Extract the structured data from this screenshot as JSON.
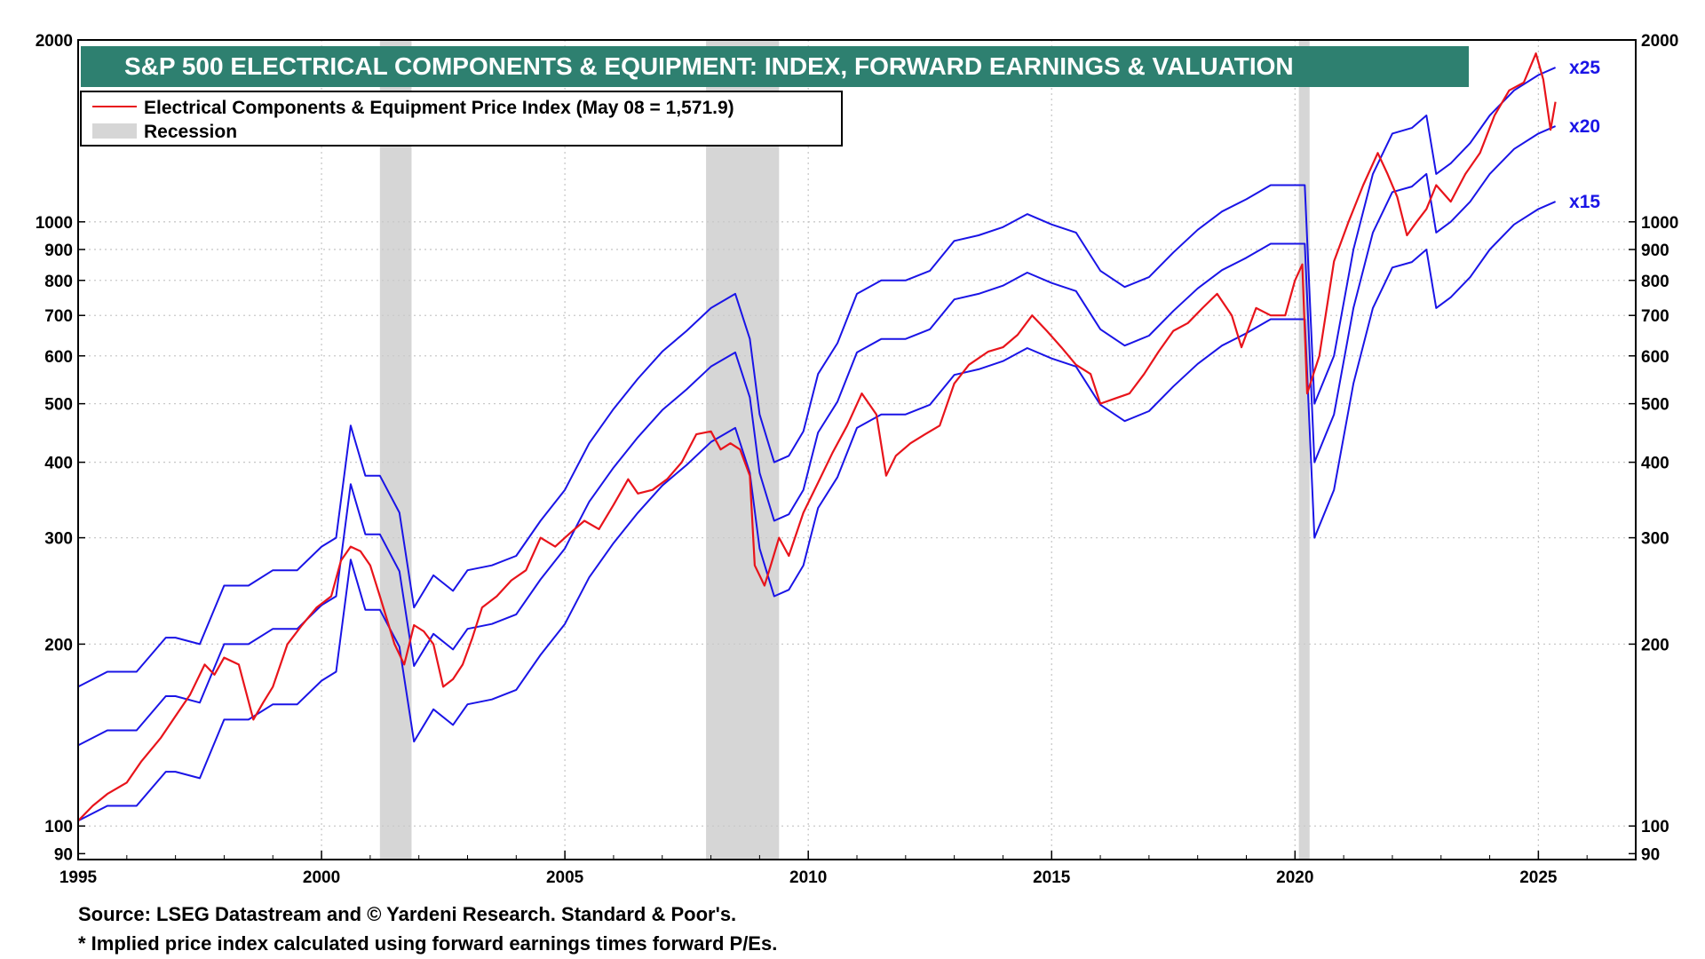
{
  "chart_data": {
    "type": "line",
    "title": "S&P 500 ELECTRICAL COMPONENTS & EQUIPMENT: INDEX, FORWARD EARNINGS & VALUATION",
    "y_scale": "log",
    "ylim": [
      88,
      2000
    ],
    "xlim": [
      1995.0,
      2027.0
    ],
    "y_ticks": [
      100,
      200,
      300,
      400,
      500,
      600,
      700,
      800,
      900,
      1000,
      2000
    ],
    "y_tick_labels_left": [
      "90",
      "100",
      "200",
      "300",
      "400",
      "500",
      "600",
      "700",
      "800",
      "900",
      "1000",
      "2000"
    ],
    "y_tick_values_left": [
      90,
      100,
      200,
      300,
      400,
      500,
      600,
      700,
      800,
      900,
      1000,
      2000
    ],
    "x_ticks": [
      1995,
      2000,
      2005,
      2010,
      2015,
      2020,
      2025
    ],
    "x_tick_labels": [
      "1995",
      "2000",
      "2005",
      "2010",
      "2015",
      "2020",
      "2025"
    ],
    "grid": true,
    "legend_position": "top-left",
    "legend": [
      {
        "label": "Electrical Components & Equipment Price Index (May 08 = 1,571.9)",
        "kind": "line",
        "color": "#e8141b"
      },
      {
        "label": "Recession",
        "kind": "area",
        "color": "#d6d6d6"
      }
    ],
    "recessions": [
      [
        2001.2,
        2001.85
      ],
      [
        2007.9,
        2009.4
      ],
      [
        2020.08,
        2020.3
      ]
    ],
    "series": [
      {
        "name": "Electrical Components & Equipment Price Index (May 08 = 1,571.9)",
        "color": "#e8141b",
        "x": [
          1995.0,
          1995.3,
          1995.6,
          1996.0,
          1996.3,
          1996.7,
          1997.0,
          1997.3,
          1997.6,
          1997.8,
          1998.0,
          1998.3,
          1998.6,
          1998.8,
          1999.0,
          1999.3,
          1999.6,
          1999.9,
          2000.2,
          2000.4,
          2000.6,
          2000.8,
          2001.0,
          2001.2,
          2001.5,
          2001.7,
          2001.9,
          2002.1,
          2002.3,
          2002.5,
          2002.7,
          2002.9,
          2003.1,
          2003.3,
          2003.6,
          2003.9,
          2004.2,
          2004.5,
          2004.8,
          2005.1,
          2005.4,
          2005.7,
          2006.0,
          2006.3,
          2006.5,
          2006.8,
          2007.1,
          2007.4,
          2007.7,
          2008.0,
          2008.2,
          2008.4,
          2008.6,
          2008.8,
          2008.9,
          2009.1,
          2009.2,
          2009.4,
          2009.6,
          2009.9,
          2010.2,
          2010.5,
          2010.8,
          2011.1,
          2011.4,
          2011.6,
          2011.8,
          2012.1,
          2012.4,
          2012.7,
          2013.0,
          2013.3,
          2013.7,
          2014.0,
          2014.3,
          2014.6,
          2014.9,
          2015.2,
          2015.5,
          2015.8,
          2016.0,
          2016.3,
          2016.6,
          2016.9,
          2017.2,
          2017.5,
          2017.8,
          2018.1,
          2018.4,
          2018.7,
          2018.9,
          2019.2,
          2019.5,
          2019.8,
          2020.0,
          2020.15,
          2020.25,
          2020.5,
          2020.8,
          2021.1,
          2021.4,
          2021.7,
          2021.9,
          2022.1,
          2022.3,
          2022.5,
          2022.7,
          2022.9,
          2023.2,
          2023.5,
          2023.8,
          2024.1,
          2024.4,
          2024.7,
          2024.95,
          2025.1,
          2025.25,
          2025.35
        ],
        "y": [
          102,
          108,
          113,
          118,
          128,
          140,
          152,
          165,
          185,
          178,
          190,
          185,
          150,
          160,
          170,
          200,
          215,
          230,
          240,
          275,
          290,
          285,
          270,
          240,
          200,
          185,
          215,
          210,
          200,
          170,
          175,
          185,
          205,
          230,
          240,
          255,
          265,
          300,
          290,
          305,
          320,
          310,
          340,
          375,
          355,
          360,
          375,
          400,
          445,
          450,
          420,
          430,
          420,
          380,
          270,
          250,
          265,
          300,
          280,
          330,
          370,
          415,
          460,
          520,
          480,
          380,
          410,
          430,
          445,
          460,
          540,
          580,
          610,
          620,
          650,
          700,
          660,
          620,
          580,
          560,
          500,
          510,
          520,
          560,
          610,
          660,
          680,
          720,
          760,
          700,
          620,
          720,
          700,
          700,
          800,
          850,
          520,
          600,
          860,
          1000,
          1150,
          1300,
          1200,
          1100,
          950,
          1000,
          1050,
          1150,
          1080,
          1200,
          1300,
          1500,
          1650,
          1700,
          1900,
          1720,
          1420,
          1580
        ]
      },
      {
        "name": "x25",
        "color": "#1a14e6",
        "x": [
          1995.0,
          1995.6,
          1996.2,
          1996.8,
          1997.0,
          1997.5,
          1998.0,
          1998.5,
          1999.0,
          1999.5,
          2000.0,
          2000.3,
          2000.6,
          2000.9,
          2001.2,
          2001.6,
          2001.9,
          2002.3,
          2002.7,
          2003.0,
          2003.5,
          2004.0,
          2004.5,
          2005.0,
          2005.5,
          2006.0,
          2006.5,
          2007.0,
          2007.5,
          2008.0,
          2008.5,
          2008.8,
          2009.0,
          2009.3,
          2009.6,
          2009.9,
          2010.2,
          2010.6,
          2011.0,
          2011.5,
          2012.0,
          2012.5,
          2013.0,
          2013.5,
          2014.0,
          2014.5,
          2015.0,
          2015.5,
          2016.0,
          2016.5,
          2017.0,
          2017.5,
          2018.0,
          2018.5,
          2019.0,
          2019.5,
          2020.0,
          2020.2,
          2020.4,
          2020.8,
          2021.2,
          2021.6,
          2022.0,
          2022.4,
          2022.7,
          2022.9,
          2023.2,
          2023.6,
          2024.0,
          2024.5,
          2025.0,
          2025.35
        ],
        "y": [
          170,
          180,
          180,
          205,
          205,
          200,
          250,
          250,
          265,
          265,
          290,
          300,
          460,
          380,
          380,
          330,
          230,
          260,
          245,
          265,
          270,
          280,
          320,
          360,
          430,
          490,
          550,
          610,
          660,
          720,
          760,
          640,
          480,
          400,
          410,
          450,
          560,
          630,
          760,
          800,
          800,
          830,
          930,
          950,
          980,
          1030,
          990,
          960,
          830,
          780,
          810,
          890,
          970,
          1040,
          1090,
          1150,
          1150,
          1150,
          500,
          600,
          900,
          1200,
          1400,
          1430,
          1500,
          1200,
          1250,
          1350,
          1500,
          1650,
          1750,
          1800
        ]
      },
      {
        "name": "x20",
        "color": "#1a14e6",
        "x": [
          1995.0,
          1995.6,
          1996.2,
          1996.8,
          1997.0,
          1997.5,
          1998.0,
          1998.5,
          1999.0,
          1999.5,
          2000.0,
          2000.3,
          2000.6,
          2000.9,
          2001.2,
          2001.6,
          2001.9,
          2002.3,
          2002.7,
          2003.0,
          2003.5,
          2004.0,
          2004.5,
          2005.0,
          2005.5,
          2006.0,
          2006.5,
          2007.0,
          2007.5,
          2008.0,
          2008.5,
          2008.8,
          2009.0,
          2009.3,
          2009.6,
          2009.9,
          2010.2,
          2010.6,
          2011.0,
          2011.5,
          2012.0,
          2012.5,
          2013.0,
          2013.5,
          2014.0,
          2014.5,
          2015.0,
          2015.5,
          2016.0,
          2016.5,
          2017.0,
          2017.5,
          2018.0,
          2018.5,
          2019.0,
          2019.5,
          2020.0,
          2020.2,
          2020.4,
          2020.8,
          2021.2,
          2021.6,
          2022.0,
          2022.4,
          2022.7,
          2022.9,
          2023.2,
          2023.6,
          2024.0,
          2024.5,
          2025.0,
          2025.35
        ],
        "y": [
          136,
          144,
          144,
          164,
          164,
          160,
          200,
          200,
          212,
          212,
          232,
          240,
          368,
          304,
          304,
          264,
          184,
          208,
          196,
          212,
          216,
          224,
          256,
          288,
          344,
          392,
          440,
          488,
          528,
          576,
          608,
          512,
          384,
          320,
          328,
          360,
          448,
          504,
          608,
          640,
          640,
          664,
          744,
          760,
          784,
          824,
          792,
          768,
          664,
          624,
          648,
          712,
          776,
          832,
          872,
          920,
          920,
          920,
          400,
          480,
          720,
          960,
          1120,
          1144,
          1200,
          960,
          1000,
          1080,
          1200,
          1320,
          1400,
          1440
        ]
      },
      {
        "name": "x15",
        "color": "#1a14e6",
        "x": [
          1995.0,
          1995.6,
          1996.2,
          1996.8,
          1997.0,
          1997.5,
          1998.0,
          1998.5,
          1999.0,
          1999.5,
          2000.0,
          2000.3,
          2000.6,
          2000.9,
          2001.2,
          2001.6,
          2001.9,
          2002.3,
          2002.7,
          2003.0,
          2003.5,
          2004.0,
          2004.5,
          2005.0,
          2005.5,
          2006.0,
          2006.5,
          2007.0,
          2007.5,
          2008.0,
          2008.5,
          2008.8,
          2009.0,
          2009.3,
          2009.6,
          2009.9,
          2010.2,
          2010.6,
          2011.0,
          2011.5,
          2012.0,
          2012.5,
          2013.0,
          2013.5,
          2014.0,
          2014.5,
          2015.0,
          2015.5,
          2016.0,
          2016.5,
          2017.0,
          2017.5,
          2018.0,
          2018.5,
          2019.0,
          2019.5,
          2020.0,
          2020.2,
          2020.4,
          2020.8,
          2021.2,
          2021.6,
          2022.0,
          2022.4,
          2022.7,
          2022.9,
          2023.2,
          2023.6,
          2024.0,
          2024.5,
          2025.0,
          2025.35
        ],
        "y": [
          102,
          108,
          108,
          123,
          123,
          120,
          150,
          150,
          159,
          159,
          174,
          180,
          276,
          228,
          228,
          198,
          138,
          156,
          147,
          159,
          162,
          168,
          192,
          216,
          258,
          294,
          330,
          366,
          396,
          432,
          456,
          384,
          288,
          240,
          246,
          270,
          336,
          378,
          456,
          480,
          480,
          498,
          558,
          570,
          588,
          618,
          594,
          576,
          498,
          468,
          486,
          534,
          582,
          624,
          654,
          690,
          690,
          690,
          300,
          360,
          540,
          720,
          840,
          858,
          900,
          720,
          750,
          810,
          900,
          990,
          1050,
          1080
        ]
      }
    ],
    "annotations": [
      {
        "text": "x25",
        "x": 2025.45,
        "y": 1800,
        "color": "#1a14e6"
      },
      {
        "text": "x20",
        "x": 2025.45,
        "y": 1440,
        "color": "#1a14e6"
      },
      {
        "text": "x15",
        "x": 2025.45,
        "y": 1080,
        "color": "#1a14e6"
      }
    ]
  },
  "footnotes": {
    "source": "Source: LSEG Datastream and © Yardeni Research. Standard & Poor's.",
    "note": "* Implied price index calculated using forward earnings times forward P/Es."
  },
  "colors": {
    "title_band": "#2e8070",
    "grid": "#c9c9c9",
    "recession": "#d6d6d6",
    "index_line": "#e8141b",
    "valuation_lines": "#1a14e6"
  }
}
